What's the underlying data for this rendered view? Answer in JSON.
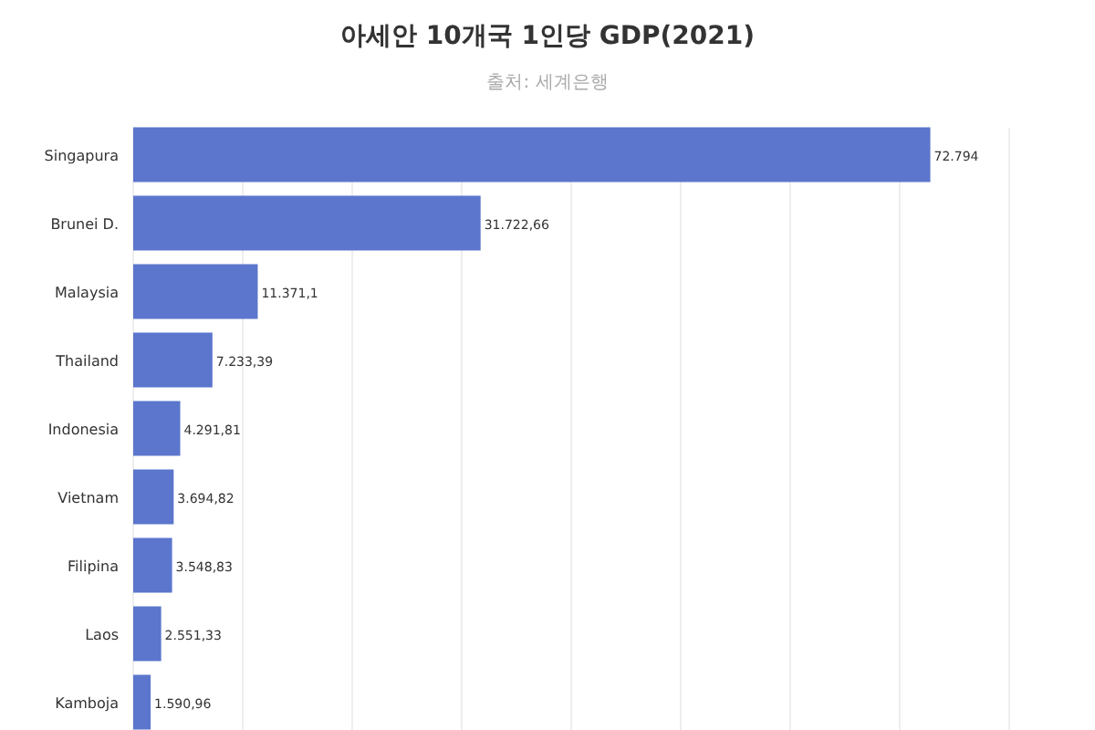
{
  "chart_data": {
    "type": "bar",
    "orientation": "horizontal",
    "title": "아세안 10개국 1인당 GDP(2021)",
    "subtitle": "출처: 세계은행",
    "categories": [
      "Singapura",
      "Brunei D.",
      "Malaysia",
      "Thailand",
      "Indonesia",
      "Vietnam",
      "Filipina",
      "Laos",
      "Kamboja"
    ],
    "values": [
      72794,
      31722.66,
      11371.1,
      7233.39,
      4291.81,
      3694.82,
      3548.83,
      2551.33,
      1590.96
    ],
    "value_labels": [
      "72.794",
      "31.722,66",
      "11.371,1",
      "7.233,39",
      "4.291,81",
      "3.694,82",
      "3.548,83",
      "2.551,33",
      "1.590,96"
    ],
    "color": "#5b76cc",
    "xlim": [
      0,
      80000
    ],
    "xticks": [
      {
        "value": 0,
        "label": null
      },
      {
        "value": 10000,
        "label": null
      },
      {
        "value": 20000,
        "label": null
      },
      {
        "value": 30000,
        "label": null
      },
      {
        "value": 40000,
        "label": null
      },
      {
        "value": 50000,
        "label": null
      },
      {
        "value": 60000,
        "label": null
      },
      {
        "value": 70000,
        "label": null
      },
      {
        "value": 80000,
        "label": null
      }
    ],
    "grid": "x"
  }
}
